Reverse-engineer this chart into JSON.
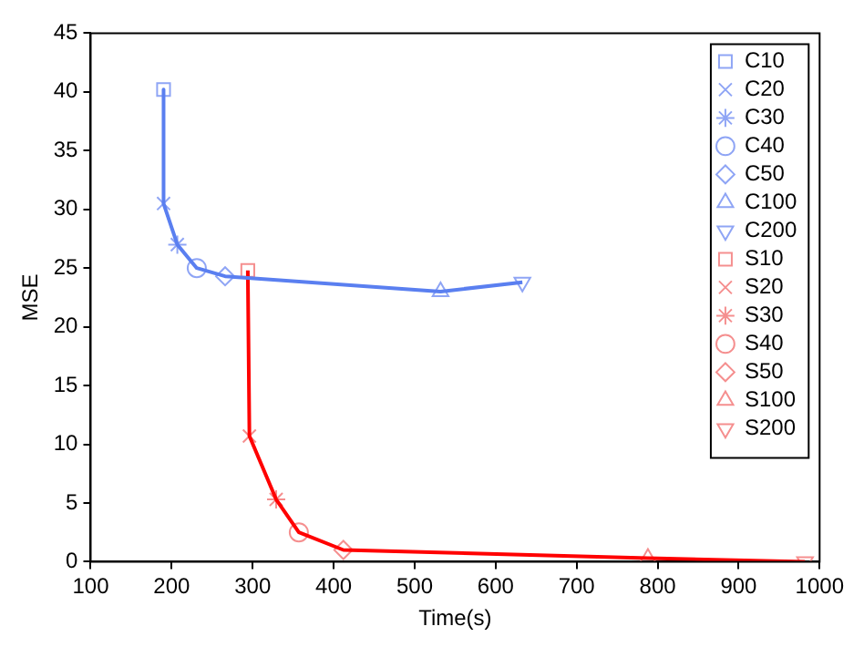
{
  "chart_data": {
    "type": "line",
    "xlabel": "Time(s)",
    "ylabel": "MSE",
    "xlim": [
      100,
      1000
    ],
    "xticks": [
      100,
      200,
      300,
      400,
      500,
      600,
      700,
      800,
      900,
      1000
    ],
    "ylim": [
      0,
      45
    ],
    "yticks": [
      0,
      5,
      10,
      15,
      20,
      25,
      30,
      35,
      40,
      45
    ],
    "grid": false,
    "legend": "top right",
    "series": [
      {
        "type": "line",
        "color": "#5a7ff0",
        "marker": "none",
        "x": [
          190,
          190,
          207,
          231,
          266,
          532,
          633
        ],
        "values": [
          40.2,
          30.5,
          27.0,
          25.0,
          24.3,
          23.0,
          23.8
        ]
      },
      {
        "type": "line",
        "color": "#ff0000",
        "marker": "none",
        "x": [
          294,
          296,
          329,
          357,
          412,
          788,
          982
        ],
        "values": [
          24.8,
          10.7,
          5.3,
          2.5,
          1.0,
          0.3,
          0.0
        ]
      },
      {
        "type": "scatter",
        "name": "C10",
        "color": "#8fa5f5",
        "marker": "square",
        "x": [
          190
        ],
        "values": [
          40.2
        ]
      },
      {
        "type": "scatter",
        "name": "C20",
        "color": "#8fa5f5",
        "marker": "cross",
        "x": [
          190
        ],
        "values": [
          30.5
        ]
      },
      {
        "type": "scatter",
        "name": "C30",
        "color": "#8fa5f5",
        "x": [
          207
        ],
        "values": [
          27.0
        ]
      },
      {
        "type": "scatter",
        "name": "C40",
        "color": "#8fa5f5",
        "marker": "circle",
        "x": [
          231
        ],
        "values": [
          25.0
        ]
      },
      {
        "type": "scatter",
        "name": "C50",
        "color": "#8fa5f5",
        "marker": "diamond",
        "x": [
          266
        ],
        "values": [
          24.3
        ]
      },
      {
        "type": "scatter",
        "name": "C100",
        "color": "#8fa5f5",
        "marker": "triangle",
        "x": [
          532
        ],
        "values": [
          23.0
        ]
      },
      {
        "type": "scatter",
        "name": "C200",
        "color": "#8fa5f5",
        "marker": "triangle-down",
        "x": [
          633
        ],
        "values": [
          23.8
        ]
      },
      {
        "type": "scatter",
        "name": "S10",
        "color": "#f58f8f",
        "marker": "square",
        "x": [
          294
        ],
        "values": [
          24.8
        ]
      },
      {
        "type": "scatter",
        "name": "S20",
        "color": "#f58f8f",
        "marker": "cross",
        "x": [
          296
        ],
        "values": [
          10.7
        ]
      },
      {
        "type": "scatter",
        "name": "S30",
        "color": "#f58f8f",
        "x": [
          329
        ],
        "values": [
          5.3
        ]
      },
      {
        "type": "scatter",
        "name": "S40",
        "color": "#f58f8f",
        "marker": "circle",
        "x": [
          357
        ],
        "values": [
          2.5
        ]
      },
      {
        "type": "scatter",
        "name": "S50",
        "color": "#f58f8f",
        "marker": "diamond",
        "x": [
          412
        ],
        "values": [
          1.0
        ]
      },
      {
        "type": "scatter",
        "name": "S100",
        "color": "#f58f8f",
        "marker": "triangle",
        "x": [
          788
        ],
        "values": [
          0.3
        ]
      },
      {
        "type": "scatter",
        "name": "S200",
        "color": "#f58f8f",
        "marker": "triangle-down",
        "x": [
          982
        ],
        "values": [
          0.0
        ]
      }
    ]
  }
}
